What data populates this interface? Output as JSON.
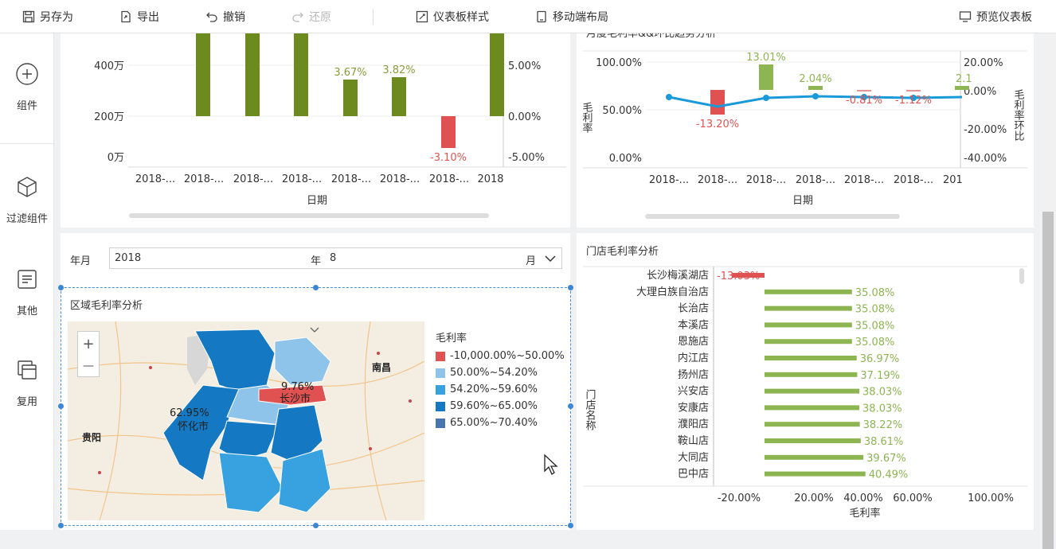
{
  "toolbar": {
    "save_as": "另存为",
    "export": "导出",
    "undo": "撤销",
    "redo": "还原",
    "dashboard_style": "仪表板样式",
    "mobile_layout": "移动端布局",
    "preview": "预览仪表板"
  },
  "sidebar": {
    "components": "组件",
    "filter_components": "过滤组件",
    "other": "其他",
    "reuse": "复用"
  },
  "chart1": {
    "xlabel": "日期",
    "y_ticks": [
      "400万",
      "200万",
      "0万"
    ],
    "y2_ticks": [
      "5.00%",
      "0.00%",
      "-5.00%"
    ],
    "x_ticks": [
      "2018-...",
      "2018-...",
      "2018-...",
      "2018-...",
      "2018-...",
      "2018-...",
      "2018-...",
      "2018"
    ],
    "data_labels": [
      "3.67%",
      "3.82%",
      "-3.10%"
    ]
  },
  "chart2": {
    "title": "月度毛利率&&环比趋势分析",
    "xlabel": "日期",
    "ylabel": "毛利率",
    "y2label": "毛利率环比",
    "y_ticks": [
      "100.00%",
      "50.00%",
      "0.00%"
    ],
    "y2_ticks": [
      "20.00%",
      "0.00%",
      "-20.00%",
      "-40.00%"
    ],
    "x_ticks": [
      "2018-...",
      "2018-...",
      "2018-...",
      "2018-...",
      "2018-...",
      "2018-...",
      "201"
    ],
    "data_labels": [
      "-13.20%",
      "13.01%",
      "2.04%",
      "-0.81%",
      "-1.12%",
      "2.1"
    ]
  },
  "filter": {
    "label": "年月",
    "year": "2018",
    "year_unit": "年",
    "month": "8",
    "month_unit": "月"
  },
  "region": {
    "title": "区域毛利率分析",
    "legend_title": "毛利率",
    "legend": [
      {
        "label": "-10,000.00%~50.00%",
        "color": "#e05252"
      },
      {
        "label": "50.00%~54.20%",
        "color": "#8ec3ea"
      },
      {
        "label": "54.20%~59.60%",
        "color": "#38a2e0"
      },
      {
        "label": "59.60%~65.00%",
        "color": "#1479c2"
      },
      {
        "label": "65.00%~70.40%",
        "color": "#4a76b0"
      }
    ],
    "map_labels": {
      "huaihua_value": "62.95%",
      "huaihua": "怀化市",
      "changsha_value": "9.76%",
      "changsha": "长沙市",
      "nanchang": "南昌",
      "guiyang": "贵阳"
    },
    "zoom_in": "+",
    "zoom_out": "—"
  },
  "store": {
    "title": "门店毛利率分析",
    "xlabel": "毛利率",
    "ylabel": "门店名称",
    "x_ticks": [
      "-20.00%",
      "20.00%",
      "40.00%",
      "60.00%",
      "100.00%"
    ],
    "chart_data": {
      "type": "bar",
      "categories": [
        "长沙梅溪湖店",
        "大理白族自治店",
        "长治店",
        "本溪店",
        "恩施店",
        "内江店",
        "扬州店",
        "兴安店",
        "安康店",
        "濮阳店",
        "鞍山店",
        "大同店",
        "巴中店"
      ],
      "values": [
        -13.03,
        35.08,
        35.08,
        35.08,
        35.08,
        36.97,
        37.19,
        38.03,
        38.03,
        38.22,
        38.61,
        39.67,
        40.49
      ],
      "labels": [
        "-13.03%",
        "35.08%",
        "35.08%",
        "35.08%",
        "35.08%",
        "36.97%",
        "37.19%",
        "38.03%",
        "38.03%",
        "38.22%",
        "38.61%",
        "39.67%",
        "40.49%"
      ],
      "xlim": [
        -20,
        100
      ]
    }
  },
  "colors": {
    "olive": "#6d8a1e",
    "green": "#8db552",
    "red": "#e05252",
    "blue": "#1a9ad9"
  }
}
